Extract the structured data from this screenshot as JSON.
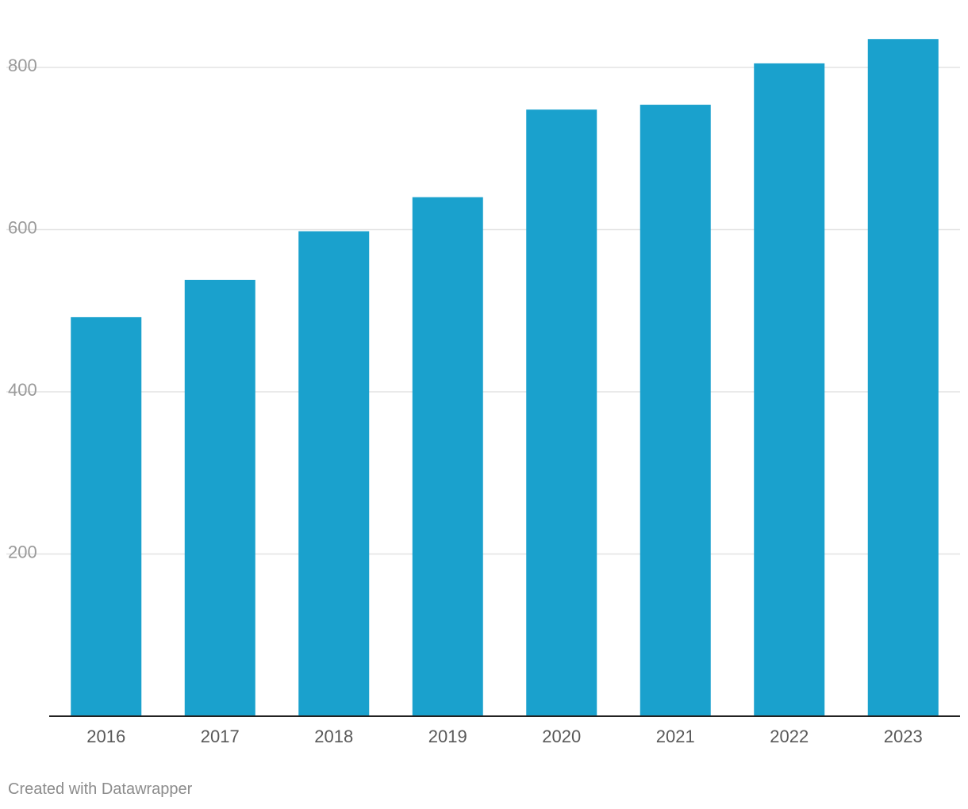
{
  "chart_data": {
    "type": "bar",
    "title": "",
    "xlabel": "",
    "ylabel": "",
    "categories": [
      "2016",
      "2017",
      "2018",
      "2019",
      "2020",
      "2021",
      "2022",
      "2023"
    ],
    "values": [
      492,
      538,
      598,
      640,
      748,
      754,
      805,
      835
    ],
    "ylim": [
      0,
      800
    ],
    "yticks": [
      200,
      400,
      600,
      800
    ],
    "grid": true,
    "legend": "none",
    "bar_color": "#1aa1cd"
  },
  "footer": {
    "credit": "Created with Datawrapper"
  }
}
